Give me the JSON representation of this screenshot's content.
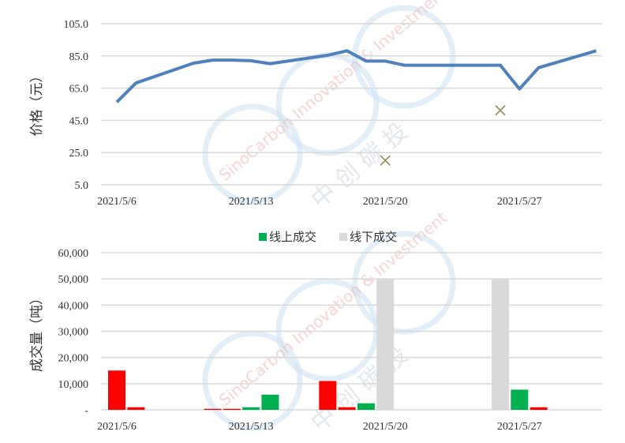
{
  "watermark": {
    "text_en": "SinoCarbon Innovation & Investment",
    "text_cn": "中 创 碳 投",
    "color": "#cfe3f3"
  },
  "chart_data": [
    {
      "type": "line",
      "ylabel": "价格（元）",
      "ylim": [
        5,
        105
      ],
      "yticks": [
        "5.0",
        "25.0",
        "45.0",
        "65.0",
        "85.0",
        "105.0"
      ],
      "xticks": [
        "2021/5/6",
        "2021/5/13",
        "2021/5/20",
        "2021/5/27"
      ],
      "grid": true,
      "series": [
        {
          "type": "line",
          "color": "#4f81bd",
          "x": [
            "2021/5/6",
            "2021/5/7",
            "2021/5/10",
            "2021/5/11",
            "2021/5/12",
            "2021/5/13",
            "2021/5/14",
            "2021/5/17",
            "2021/5/18",
            "2021/5/19",
            "2021/5/20",
            "2021/5/21",
            "2021/5/24",
            "2021/5/25",
            "2021/5/26",
            "2021/5/27",
            "2021/5/28",
            "2021/5/31"
          ],
          "values": [
            56.3,
            68.2,
            80.5,
            82.4,
            82.4,
            82.0,
            80.2,
            85.4,
            88.2,
            81.8,
            81.8,
            79.2,
            79.2,
            79.2,
            79.2,
            64.5,
            77.7,
            88.2
          ]
        },
        {
          "type": "scatter",
          "marker": "x",
          "color": "#948a54",
          "x": [
            "2021/5/20",
            "2021/5/26"
          ],
          "values": [
            20.1,
            51.2
          ]
        }
      ]
    },
    {
      "type": "bar",
      "ylabel": "成交量（吨）",
      "ylim": [
        0,
        60000
      ],
      "yticks": [
        "-",
        "10,000",
        "20,000",
        "30,000",
        "40,000",
        "50,000",
        "60,000"
      ],
      "xticks": [
        "2021/5/6",
        "2021/5/13",
        "2021/5/20",
        "2021/5/27"
      ],
      "grid": true,
      "legend_position": "top",
      "series": [
        {
          "name": "",
          "color": "#ff0000",
          "x": [
            "2021/5/6",
            "2021/5/7",
            "2021/5/11",
            "2021/5/12",
            "2021/5/17",
            "2021/5/18",
            "2021/5/28"
          ],
          "values": [
            15000,
            1000,
            400,
            400,
            11000,
            1000,
            1000
          ]
        },
        {
          "name": "线上成交",
          "color": "#00b050",
          "x": [
            "2021/5/13",
            "2021/5/14",
            "2021/5/19",
            "2021/5/27"
          ],
          "values": [
            1000,
            5800,
            2500,
            7700
          ]
        },
        {
          "name": "线下成交",
          "color": "#d9d9d9",
          "x": [
            "2021/5/20",
            "2021/5/26"
          ],
          "values": [
            50000,
            50000
          ]
        }
      ]
    }
  ]
}
